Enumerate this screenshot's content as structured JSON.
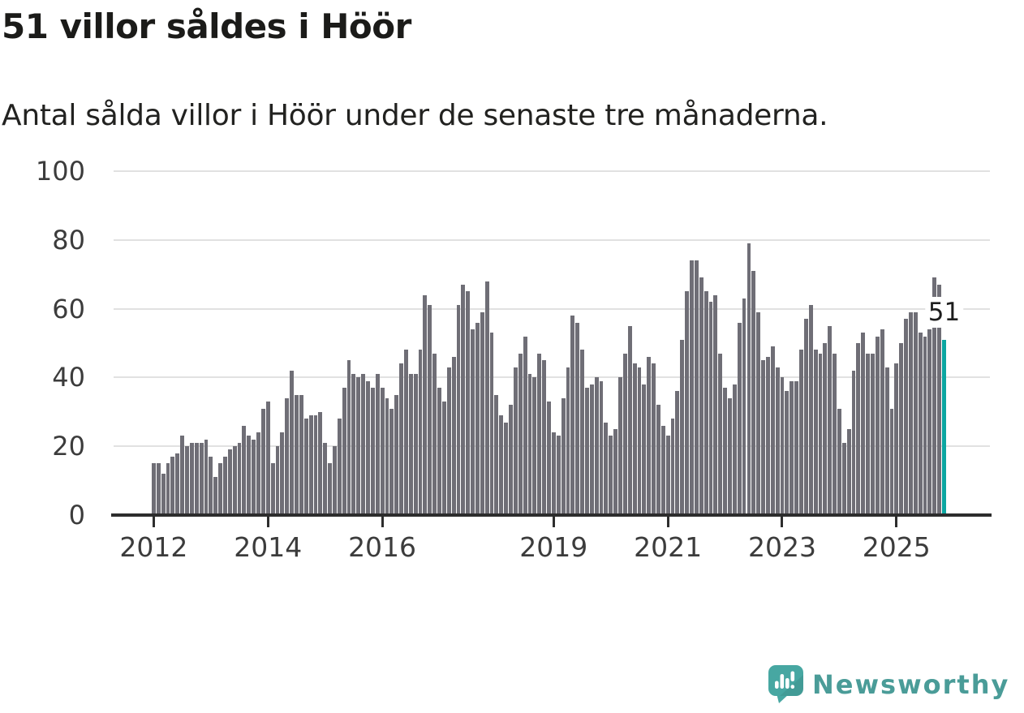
{
  "header": {
    "title": "51 villor såldes i Höör",
    "subtitle": "Antal sålda villor i Höör under de senaste tre månaderna."
  },
  "chart_data": {
    "type": "bar",
    "title": "51 villor såldes i Höör",
    "subtitle": "Antal sålda villor i Höör under de senaste tre månaderna.",
    "xlabel": "",
    "ylabel": "",
    "ylim": [
      0,
      100
    ],
    "yticks": [
      0,
      20,
      40,
      60,
      80,
      100
    ],
    "grid": true,
    "legend": "none",
    "start_period": "2012-01",
    "xticks": [
      {
        "label": "2012",
        "month_index": 0
      },
      {
        "label": "2014",
        "month_index": 24
      },
      {
        "label": "2016",
        "month_index": 48
      },
      {
        "label": "2019",
        "month_index": 84
      },
      {
        "label": "2021",
        "month_index": 108
      },
      {
        "label": "2023",
        "month_index": 132
      },
      {
        "label": "2025",
        "month_index": 156
      }
    ],
    "bar_color": "#6F6E76",
    "highlight": {
      "index": 166,
      "value": 51,
      "color": "#0CA6A1",
      "label": "51"
    },
    "values": [
      15,
      15,
      12,
      15,
      17,
      18,
      23,
      20,
      21,
      21,
      21,
      22,
      17,
      11,
      15,
      17,
      19,
      20,
      21,
      26,
      23,
      22,
      24,
      31,
      33,
      15,
      20,
      24,
      34,
      42,
      35,
      35,
      28,
      29,
      29,
      30,
      21,
      15,
      20,
      28,
      37,
      45,
      41,
      40,
      41,
      39,
      37,
      41,
      37,
      34,
      31,
      35,
      44,
      48,
      41,
      41,
      48,
      64,
      61,
      47,
      37,
      33,
      43,
      46,
      61,
      67,
      65,
      54,
      56,
      59,
      68,
      53,
      35,
      29,
      27,
      32,
      43,
      47,
      52,
      41,
      40,
      47,
      45,
      33,
      24,
      23,
      34,
      43,
      58,
      56,
      48,
      37,
      38,
      40,
      39,
      27,
      23,
      25,
      40,
      47,
      55,
      44,
      43,
      38,
      46,
      44,
      32,
      26,
      23,
      28,
      36,
      51,
      65,
      74,
      74,
      69,
      65,
      62,
      64,
      47,
      37,
      34,
      38,
      56,
      63,
      79,
      71,
      59,
      45,
      46,
      49,
      43,
      40,
      36,
      39,
      39,
      48,
      57,
      61,
      48,
      47,
      50,
      55,
      47,
      31,
      21,
      25,
      42,
      50,
      53,
      47,
      47,
      52,
      54,
      43,
      31,
      44,
      50,
      57,
      59,
      59,
      53,
      52,
      54,
      69,
      67,
      51
    ]
  },
  "footer": {
    "brand": "Newsworthy",
    "brand_color": "#4A9C98",
    "logo_color": "#47A7A2"
  }
}
